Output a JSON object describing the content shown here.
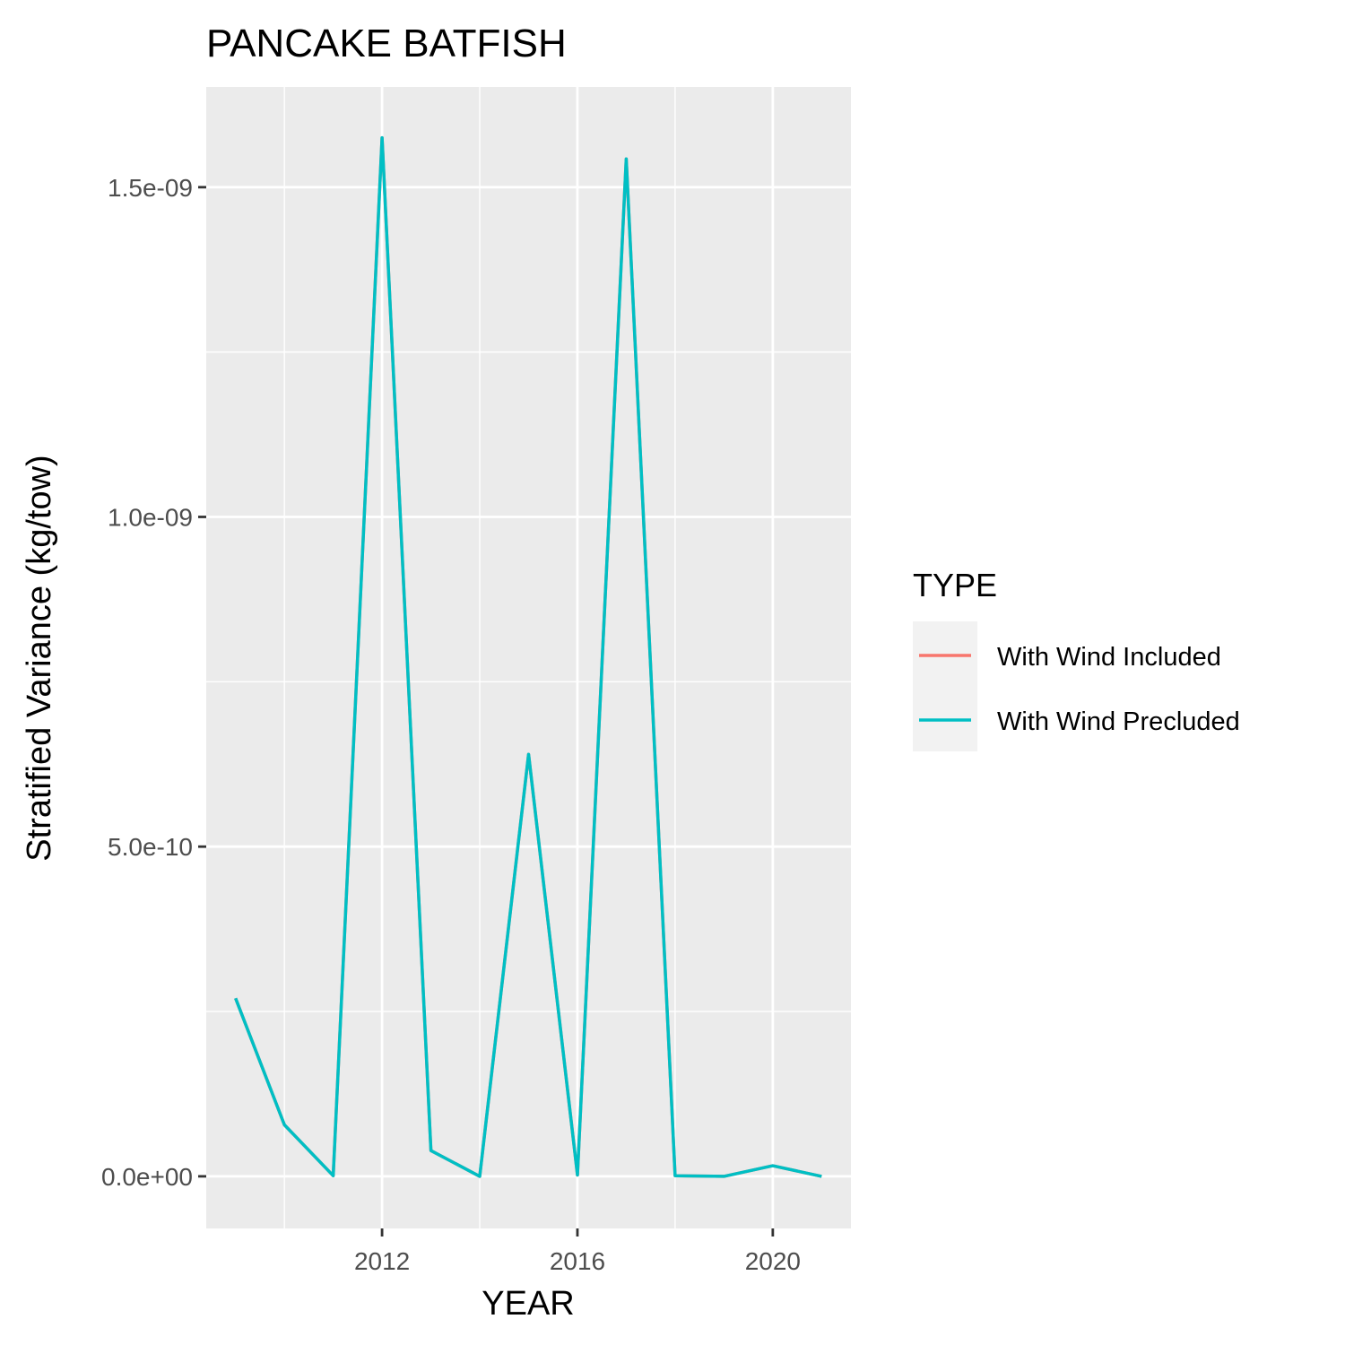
{
  "chart_data": {
    "type": "line",
    "title": "PANCAKE BATFISH",
    "xlabel": "YEAR",
    "ylabel": "Stratified Variance (kg/tow)",
    "x": [
      2009,
      2010,
      2011,
      2012,
      2013,
      2014,
      2015,
      2016,
      2017,
      2018,
      2019,
      2020,
      2021
    ],
    "series": [
      {
        "name": "With Wind Included",
        "color": "#F8766D",
        "values": [
          2.7e-10,
          7.8e-11,
          1e-12,
          1.575e-09,
          3.9e-11,
          0,
          6.4e-10,
          2e-12,
          1.543e-09,
          1e-12,
          0,
          1.6e-11,
          0
        ]
      },
      {
        "name": "With Wind Precluded",
        "color": "#00BFC4",
        "values": [
          2.7e-10,
          7.8e-11,
          1e-12,
          1.575e-09,
          3.9e-11,
          0,
          6.4e-10,
          2e-12,
          1.543e-09,
          1e-12,
          0,
          1.6e-11,
          0
        ]
      }
    ],
    "x_ticks": [
      2012,
      2016,
      2020
    ],
    "x_tick_labels": [
      "2012",
      "2016",
      "2020"
    ],
    "y_ticks": [
      0,
      5e-10,
      1e-09,
      1.5e-09
    ],
    "y_tick_labels": [
      "0.0e+00",
      "5.0e-10",
      "1.0e-09",
      "1.5e-09"
    ],
    "xlim": [
      2008.4,
      2021.6
    ],
    "ylim": [
      -7.9e-11,
      1.652e-09
    ],
    "grid": true,
    "legend_title": "TYPE",
    "legend_position": "right",
    "panel_background": "#EBEBEB",
    "grid_color": "#FFFFFF"
  }
}
